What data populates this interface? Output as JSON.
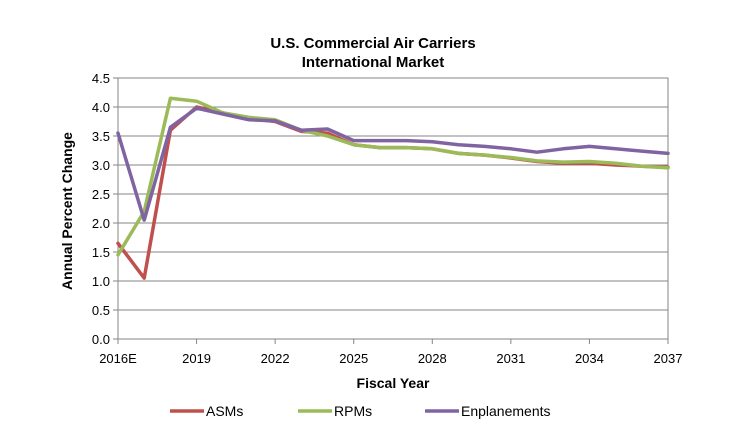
{
  "chart_data": {
    "type": "line",
    "title": "U.S. Commercial Air Carriers",
    "subtitle": "International Market",
    "xlabel": "Fiscal Year",
    "ylabel": "Annual Percent Change",
    "ylim": [
      0,
      4.5
    ],
    "yticks": [
      "0.0",
      "0.5",
      "1.0",
      "1.5",
      "2.0",
      "2.5",
      "3.0",
      "3.5",
      "4.0",
      "4.5"
    ],
    "xticks": [
      {
        "label": "2016E",
        "year": 2016
      },
      {
        "label": "2019",
        "year": 2019
      },
      {
        "label": "2022",
        "year": 2022
      },
      {
        "label": "2025",
        "year": 2025
      },
      {
        "label": "2028",
        "year": 2028
      },
      {
        "label": "2031",
        "year": 2031
      },
      {
        "label": "2034",
        "year": 2034
      },
      {
        "label": "2037",
        "year": 2037
      }
    ],
    "x": [
      2016,
      2017,
      2018,
      2019,
      2020,
      2021,
      2022,
      2023,
      2024,
      2025,
      2026,
      2027,
      2028,
      2029,
      2030,
      2031,
      2032,
      2033,
      2034,
      2035,
      2036,
      2037
    ],
    "grid": true,
    "legend_position": "bottom",
    "series": [
      {
        "name": "ASMs",
        "color": "#c0504d",
        "values": [
          1.65,
          1.05,
          3.6,
          4.0,
          3.9,
          3.8,
          3.75,
          3.58,
          3.55,
          3.35,
          3.3,
          3.3,
          3.28,
          3.2,
          3.17,
          3.12,
          3.06,
          3.03,
          3.03,
          3.0,
          2.98,
          2.96
        ]
      },
      {
        "name": "RPMs",
        "color": "#9bbb59",
        "values": [
          1.45,
          2.2,
          4.15,
          4.1,
          3.9,
          3.82,
          3.78,
          3.6,
          3.5,
          3.35,
          3.3,
          3.3,
          3.28,
          3.2,
          3.17,
          3.13,
          3.07,
          3.05,
          3.06,
          3.03,
          2.98,
          2.95
        ]
      },
      {
        "name": "Enplanements",
        "color": "#8064a2",
        "values": [
          3.55,
          2.05,
          3.65,
          3.98,
          3.88,
          3.78,
          3.76,
          3.6,
          3.62,
          3.42,
          3.42,
          3.42,
          3.4,
          3.35,
          3.32,
          3.28,
          3.22,
          3.28,
          3.32,
          3.28,
          3.24,
          3.2
        ]
      }
    ]
  }
}
